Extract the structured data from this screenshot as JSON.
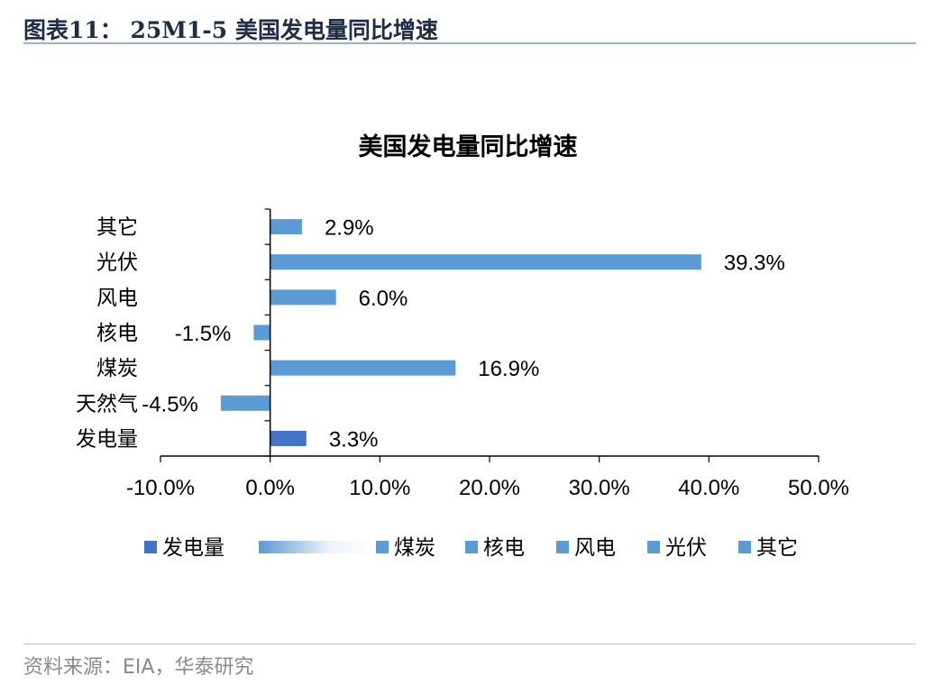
{
  "header": {
    "title": "图表11： 25M1-5 美国发电量同比增速"
  },
  "footer": {
    "source": "资料来源：EIA，华泰研究"
  },
  "chart_data": {
    "type": "bar",
    "orientation": "horizontal",
    "title": "美国发电量同比增速",
    "categories": [
      "其它",
      "光伏",
      "风电",
      "核电",
      "煤炭",
      "天然气",
      "发电量"
    ],
    "values": [
      2.9,
      39.3,
      6.0,
      -1.5,
      16.9,
      -4.5,
      3.3
    ],
    "data_labels": [
      "2.9%",
      "39.3%",
      "6.0%",
      "-1.5%",
      "16.9%",
      "-4.5%",
      "3.3%"
    ],
    "xlim": [
      -10,
      50
    ],
    "x_ticks": [
      -10,
      0,
      10,
      20,
      30,
      40,
      50
    ],
    "x_tick_labels": [
      "-10.0%",
      "0.0%",
      "10.0%",
      "20.0%",
      "30.0%",
      "40.0%",
      "50.0%"
    ],
    "legend": [
      "发电量",
      "",
      "煤炭",
      "核电",
      "风电",
      "光伏",
      "其它"
    ],
    "legend_position": "bottom",
    "colors": {
      "total": "#4472c4",
      "other": "#5b9bd5",
      "title": "#1f2d47",
      "source": "#8a8a8a"
    }
  }
}
